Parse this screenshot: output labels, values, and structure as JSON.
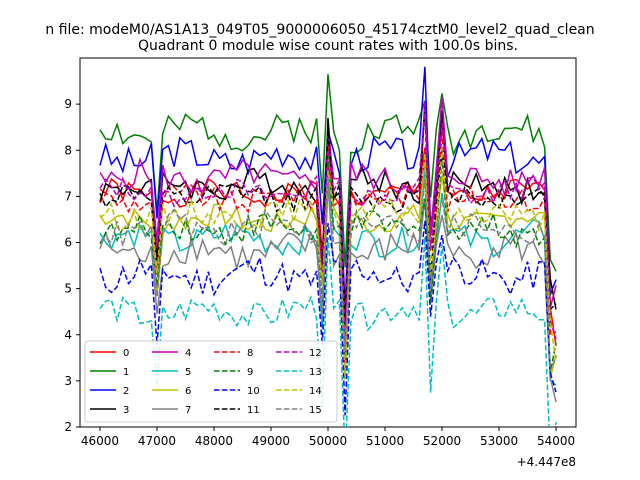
{
  "chart_data": {
    "type": "line",
    "suptitle": "n file: modeM0/AS1A13_049T05_9000006050_45174cztM0_level2_quad_clean",
    "title": "Quadrant 0 module wise count rates with 100.0s bins.",
    "xlabel": "",
    "ylabel": "",
    "offset_label": "+4.447e8",
    "xlim": [
      45650,
      54350
    ],
    "ylim": [
      2,
      10
    ],
    "x_ticks": [
      46000,
      47000,
      48000,
      49000,
      50000,
      51000,
      52000,
      53000,
      54000
    ],
    "x_tick_labels": [
      "46000",
      "47000",
      "48000",
      "49000",
      "50000",
      "51000",
      "52000",
      "53000",
      "54000"
    ],
    "y_ticks": [
      2,
      3,
      4,
      5,
      6,
      7,
      8,
      9
    ],
    "y_tick_labels": [
      "2",
      "3",
      "4",
      "5",
      "6",
      "7",
      "8",
      "9"
    ],
    "legend_position": "lower-left",
    "x_start": 46000,
    "x_step": 100,
    "features": {
      "dips": [
        [
          47000,
          1.6
        ],
        [
          49900,
          1.6
        ],
        [
          50300,
          3.2
        ],
        [
          51800,
          2.6
        ],
        [
          53950,
          2.8
        ]
      ],
      "spikes": [
        [
          50000,
          1.3
        ],
        [
          51750,
          1.5
        ],
        [
          52000,
          1.4
        ]
      ]
    },
    "series": [
      {
        "name": "0",
        "color": "#ff0000",
        "dash": "solid",
        "mean": 7.05,
        "amp": 0.25,
        "seed": 1
      },
      {
        "name": "1",
        "color": "#008000",
        "dash": "solid",
        "mean": 8.4,
        "amp": 0.35,
        "seed": 2
      },
      {
        "name": "2",
        "color": "#0000ff",
        "dash": "solid",
        "mean": 7.85,
        "amp": 0.35,
        "seed": 3
      },
      {
        "name": "3",
        "color": "#000000",
        "dash": "solid",
        "mean": 7.25,
        "amp": 0.3,
        "seed": 4
      },
      {
        "name": "4",
        "color": "#bf00bf",
        "dash": "solid",
        "mean": 7.4,
        "amp": 0.3,
        "seed": 5
      },
      {
        "name": "5",
        "color": "#00bfbf",
        "dash": "solid",
        "mean": 6.1,
        "amp": 0.3,
        "seed": 6
      },
      {
        "name": "6",
        "color": "#bfbf00",
        "dash": "solid",
        "mean": 6.5,
        "amp": 0.25,
        "seed": 7
      },
      {
        "name": "7",
        "color": "#808080",
        "dash": "solid",
        "mean": 5.8,
        "amp": 0.35,
        "seed": 8
      },
      {
        "name": "8",
        "color": "#ff0000",
        "dash": "dashed",
        "mean": 6.95,
        "amp": 0.25,
        "seed": 9
      },
      {
        "name": "9",
        "color": "#008000",
        "dash": "dashed",
        "mean": 6.3,
        "amp": 0.3,
        "seed": 10
      },
      {
        "name": "10",
        "color": "#0000ff",
        "dash": "dashed",
        "mean": 5.3,
        "amp": 0.35,
        "seed": 11
      },
      {
        "name": "11",
        "color": "#000000",
        "dash": "dashed",
        "mean": 7.0,
        "amp": 0.25,
        "seed": 12
      },
      {
        "name": "12",
        "color": "#bf00bf",
        "dash": "dashed",
        "mean": 7.1,
        "amp": 0.25,
        "seed": 13
      },
      {
        "name": "13",
        "color": "#00bfbf",
        "dash": "dashed",
        "mean": 4.5,
        "amp": 0.3,
        "seed": 14
      },
      {
        "name": "14",
        "color": "#bfbf00",
        "dash": "dashed",
        "mean": 6.6,
        "amp": 0.25,
        "seed": 15
      },
      {
        "name": "15",
        "color": "#808080",
        "dash": "dashed",
        "mean": 6.3,
        "amp": 0.3,
        "seed": 16
      }
    ]
  }
}
